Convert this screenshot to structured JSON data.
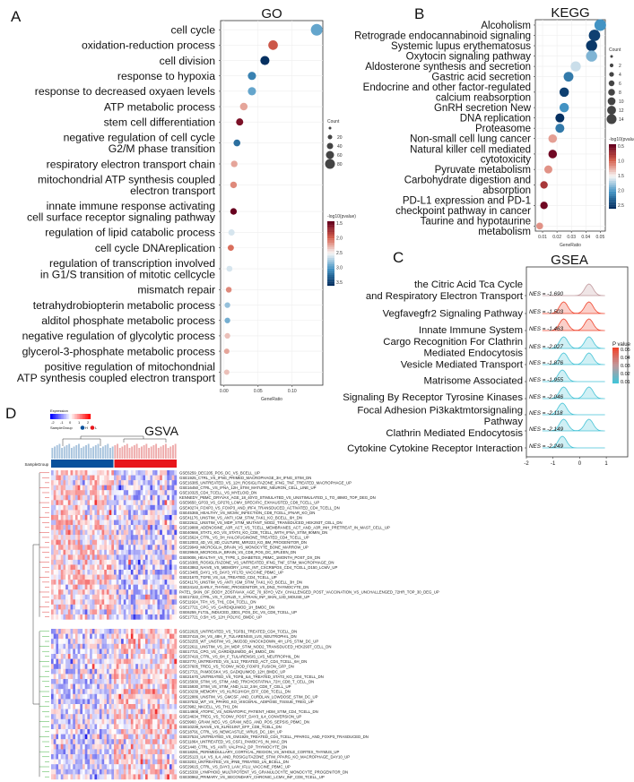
{
  "panels": {
    "a": "A",
    "b": "B",
    "c": "C",
    "d": "D"
  },
  "chart_data": [
    {
      "type": "scatter",
      "title": "GO",
      "xlabel": "GeneRatio",
      "xticks": [
        "0.00",
        "0.05",
        "0.10"
      ],
      "xlim": [
        -0.005,
        0.145
      ],
      "size_legend": {
        "title": "Count",
        "ticks": [
          "20",
          "40",
          "60",
          "80"
        ]
      },
      "color_legend": {
        "title": "-log10(pvalue)",
        "ticks": [
          "1.5",
          "2.0",
          "2.5",
          "3.0",
          "3.5"
        ],
        "range": [
          1.4,
          3.6
        ]
      },
      "terms": [
        {
          "label": [
            "cell cycle"
          ],
          "ratio": 0.136,
          "count": 85,
          "logp": 2.95
        },
        {
          "label": [
            "oxidation-reduction process"
          ],
          "ratio": 0.072,
          "count": 45,
          "logp": 1.9
        },
        {
          "label": [
            "cell division"
          ],
          "ratio": 0.06,
          "count": 38,
          "logp": 3.6
        },
        {
          "label": [
            "response to hypoxia"
          ],
          "ratio": 0.041,
          "count": 26,
          "logp": 3.15
        },
        {
          "label": [
            "response to decreased oxyaen levels"
          ],
          "ratio": 0.041,
          "count": 26,
          "logp": 2.95
        },
        {
          "label": [
            "ATP metabolic process"
          ],
          "ratio": 0.029,
          "count": 19,
          "logp": 2.2
        },
        {
          "label": [
            "stem cell differentiation"
          ],
          "ratio": 0.023,
          "count": 15,
          "logp": 1.5
        },
        {
          "label": [
            "negative regulation of cell cycle",
            "G2/M phase transition"
          ],
          "ratio": 0.019,
          "count": 12,
          "logp": 3.25
        },
        {
          "label": [
            "respiratory electron transport chain"
          ],
          "ratio": 0.015,
          "count": 10,
          "logp": 2.2
        },
        {
          "label": [
            "mitochondrial ATP synthesis coupled",
            "electron transport"
          ],
          "ratio": 0.014,
          "count": 10,
          "logp": 2.1
        },
        {
          "label": [
            "innate immune response activating",
            "cell surface receptor signaling pathway"
          ],
          "ratio": 0.014,
          "count": 10,
          "logp": 1.4
        },
        {
          "label": [
            "regulation of lipid catabolic process"
          ],
          "ratio": 0.011,
          "count": 8,
          "logp": 2.6
        },
        {
          "label": [
            "cell cycle DNAreplication"
          ],
          "ratio": 0.01,
          "count": 7,
          "logp": 2.0
        },
        {
          "label": [
            "regulation of transcription involved",
            "in G1/S transition of mitotic cellcycle"
          ],
          "ratio": 0.008,
          "count": 6,
          "logp": 2.6
        },
        {
          "label": [
            "mismatch repair"
          ],
          "ratio": 0.007,
          "count": 5,
          "logp": 2.1
        },
        {
          "label": [
            "tetrahydrobiopterin metabolic process"
          ],
          "ratio": 0.005,
          "count": 4,
          "logp": 2.8
        },
        {
          "label": [
            "alditol phosphate metabolic process"
          ],
          "ratio": 0.005,
          "count": 4,
          "logp": 2.9
        },
        {
          "label": [
            "negative regulation of glycolytic process"
          ],
          "ratio": 0.005,
          "count": 4,
          "logp": 2.3
        },
        {
          "label": [
            "glycerol-3-phosphate metabolic process"
          ],
          "ratio": 0.004,
          "count": 3,
          "logp": 2.2
        },
        {
          "label": [
            "positive regulation of mitochondnial",
            "ATP synthesis coupled electron transport"
          ],
          "ratio": 0.004,
          "count": 3,
          "logp": 2.3
        }
      ]
    },
    {
      "type": "scatter",
      "title": "KEGG",
      "xlabel": "GeneRatio",
      "xticks": [
        "0.01",
        "0.02",
        "0.03",
        "0.04",
        "0.05"
      ],
      "xlim": [
        0.005,
        0.0535
      ],
      "size_legend": {
        "title": "Count",
        "ticks": [
          "2",
          "4",
          "6",
          "8",
          "10",
          "12",
          "14"
        ]
      },
      "color_legend": {
        "title": "-log10(pvalue)",
        "ticks": [
          "0.5",
          "1.0",
          "1.5",
          "2.0",
          "2.5"
        ],
        "range": [
          0.4,
          2.8
        ]
      },
      "terms": [
        {
          "label": [
            "Alcoholism"
          ],
          "ratio": 0.05,
          "count": 14,
          "logp": 2.2
        },
        {
          "label": [
            "Retrograde endocannabinoid signaling"
          ],
          "ratio": 0.046,
          "count": 13,
          "logp": 2.7
        },
        {
          "label": [
            "Systemic lupus erythematosus"
          ],
          "ratio": 0.044,
          "count": 12,
          "logp": 2.75
        },
        {
          "label": [
            "Oxytocin signaling pathway"
          ],
          "ratio": 0.044,
          "count": 12,
          "logp": 2.0
        },
        {
          "label": [
            "Aldosterone synthesis and secretion"
          ],
          "ratio": 0.033,
          "count": 9,
          "logp": 1.75
        },
        {
          "label": [
            "Gastric acid secretion"
          ],
          "ratio": 0.028,
          "count": 8,
          "logp": 2.35
        },
        {
          "label": [
            "Endocrine and other factor-regulated",
            "calcium reabsorption"
          ],
          "ratio": 0.025,
          "count": 7,
          "logp": 2.7
        },
        {
          "label": [
            "GnRH secretion New"
          ],
          "ratio": 0.025,
          "count": 7,
          "logp": 2.2
        },
        {
          "label": [
            "DNA replication"
          ],
          "ratio": 0.022,
          "count": 6,
          "logp": 2.8
        },
        {
          "label": [
            "Proteasome"
          ],
          "ratio": 0.022,
          "count": 6,
          "logp": 2.35
        },
        {
          "label": [
            "Non-small cell lung cancer"
          ],
          "ratio": 0.017,
          "count": 5,
          "logp": 1.25
        },
        {
          "label": [
            "Natural killer cell mediated",
            "cytotoxicity"
          ],
          "ratio": 0.017,
          "count": 5,
          "logp": 0.45
        },
        {
          "label": [
            "Pyruvate metabolism"
          ],
          "ratio": 0.014,
          "count": 4,
          "logp": 1.2
        },
        {
          "label": [
            "Carbohydrate digestion and",
            "absorption"
          ],
          "ratio": 0.011,
          "count": 3,
          "logp": 0.75
        },
        {
          "label": [
            "PD-L1 expression and PD-1",
            "checkpoint pathway in cancer"
          ],
          "ratio": 0.011,
          "count": 3,
          "logp": 0.45
        },
        {
          "label": [
            "Taurine and hypotaurine",
            "metabolism"
          ],
          "ratio": 0.008,
          "count": 2,
          "logp": 1.2
        }
      ]
    },
    {
      "type": "area",
      "title": "GSEA",
      "xticks": [
        "-2",
        "-1",
        "0",
        "1"
      ],
      "xlim": [
        -2,
        1.4
      ],
      "legend": {
        "title": "P value",
        "ticks": [
          "0.05",
          "0.04",
          "0.03",
          "0.02",
          "0.01"
        ],
        "placement": "right"
      },
      "nes_prefix": "NES",
      "sets": [
        {
          "label": [
            "the Citric Acid Tca Cycle",
            "and Respiratory Electron Transport"
          ],
          "nes": "-1.690",
          "p": 0.03,
          "modes": [
            0.35
          ]
        },
        {
          "label": [
            "Vegfavegfr2 Signaling Pathway"
          ],
          "nes": "-1.503",
          "p": 0.05,
          "modes": [
            -0.6,
            0.35
          ]
        },
        {
          "label": [
            "Innate Immune System"
          ],
          "nes": "-1.463",
          "p": 0.05,
          "modes": [
            -0.6,
            0.35
          ]
        },
        {
          "label": [
            "Cargo Recognition For Clathrin",
            "Mediated Endocytosis"
          ],
          "nes": "-2.027",
          "p": 0.01,
          "modes": [
            -0.6,
            0.35
          ]
        },
        {
          "label": [
            "Vesicle Mediated Transport"
          ],
          "nes": "-1.876",
          "p": 0.01,
          "modes": [
            -0.6,
            0.35
          ]
        },
        {
          "label": [
            "Matrisome Associated"
          ],
          "nes": "-1.955",
          "p": 0.01,
          "modes": [
            -0.65
          ]
        },
        {
          "label": [
            "Signaling By Receptor Tyrosine Kinases"
          ],
          "nes": "-2.046",
          "p": 0.01,
          "modes": [
            -0.6,
            0.35
          ]
        },
        {
          "label": [
            "Focal Adhesion Pi3kaktmtorsignaling",
            "Pathway"
          ],
          "nes": "-2.118",
          "p": 0.01,
          "modes": [
            -0.65
          ]
        },
        {
          "label": [
            "Clathrin Mediated Endocytosis"
          ],
          "nes": "-2.149",
          "p": 0.01,
          "modes": [
            -0.6,
            0.35
          ]
        },
        {
          "label": [
            "Cytokine Cytokine Receptor Interaction"
          ],
          "nes": "-2.249",
          "p": 0.01,
          "modes": [
            -0.65
          ]
        }
      ]
    },
    {
      "type": "heatmap",
      "title": "GSVA",
      "legend": {
        "title": "Expression",
        "ticks": [
          "-2",
          "-1",
          "0",
          "1",
          "2"
        ],
        "group_title": "SampleGroup",
        "groups": [
          "H",
          "L"
        ],
        "group_colors": [
          "#08519c",
          "#e8161b"
        ]
      },
      "annotation_label": "SampleGroup",
      "samples_per_group": 26,
      "rows_up": [
        "GSE6259_DEC205_POS_DC_VS_BCELL_UP",
        "GSE1925_CTRL_VS_IFNG_PRIMED_MACROPHAGE_3H_IFNG_STIM_DN",
        "GSE16385_UNTREATED_VS_12H_ROSIGLITAZONE_IFNG_TNF_TREATED_MACROPHAGE_UP",
        "GSE16450_CTRL_VS_IFNA_12H_STIM_MATURE_NEURON_CELL_LINE_UP",
        "GSE10325_CD4_TCELL_VS_MYELOID_DN",
        "KENNEDY_PBMC_DRYVAX_AGE_18_40YO_STIMULATED_VS_UNSTIMULATED_1_TO_48MO_TOP_DEG_DN",
        "GSE9650_GP33_VS_GP276_LCMV_SPECIFIC_EXHAUSTED_CD8_TCELL_UP",
        "GSE40274_FOXP3_VS_FOXP3_AND_IRF4_TRANSDUCED_ACTIVATED_CD4_TCELL_DN",
        "GSE45365_HEALTHY_VS_MCMV_INFECTION_CD8_TCELL_IFNAR_KO_DN",
        "GSE41176_UNSTIM_VS_ANTI_IGM_STIM_TAK1_KO_BCELL_6H_DN",
        "GSE22611_UNSTIM_VS_MDP_STIM_MUTANT_NOD2_TRANSDUCED_HEK293T_CELL_DN",
        "GSE19888_ADENOSINE_A3R_ACT_VS_TCELL_MEMBRANES_ACT_AND_A3R_INH_PRETREAT_IN_MAST_CELL_UP",
        "GSE40666_STAT1_KO_VS_STAT4_KO_CD8_TCELL_WITH_IFNA_STIM_90MIN_DN",
        "GSE15624_CTRL_VS_3H_HALOFUGINONE_TREATED_CD4_TCELL_UP",
        "GSE12003_4D_VS_8D_CULTURE_MIR223_KO_BM_PROGENITOR_DN",
        "GSE29949_MICROGLIA_BRAIN_VS_MONOCYTE_BONE_MARROW_UP",
        "GSE29949_MICROGLIA_BRAIN_VS_CD8_POS_DC_SPLEEN_DN",
        "GSE9006_HEALTHY_VS_TYPE_1_DIABETES_PBMC_1MONTH_POST_DX_DN",
        "GSE16385_ROSIGLITAZONE_VS_UNTREATED_IFNG_TNF_STIM_MACROPHAGE_DN",
        "GSE43863_NAIVE_VS_MEMORY_LY6C_INT_CXCR5POS_CD4_TCELL_D150_LCMV_UP",
        "GSE13485_DAY1_VS_DAY3_YF17D_VACCINE_PBMC_UP",
        "GSE21670_TGFB_VS_IL6_TREATED_CD4_TCELL_UP",
        "GSE41176_UNSTIM_VS_ANTI_IGM_STIM_TAK1_KO_BCELL_3H_DN",
        "GSE24142_EARLY_THYMIC_PROGENITOR_VS_DN3_THYMOCYTE_DN",
        "PATEL_SKIN_OF_BODY_ZOSTAVAX_AGE_70_93YO_VZV_CHALLENGED_POST_VACCINATION_VS_UNCHALLENGED_72HR_TOP_30_DEG_UP",
        "GSE17322_CTRL_VS_T_CRUZI_Y_STRAIN_INF_SKIN_12D_MOUSE_UP",
        "GSE11924_TFH_VS_TH1_CD4_TCELL_DN",
        "GSE17721_CPG_VS_GARDIQUIMOD_1H_BMDC_DN",
        "GSE6259_FLT3L_INDUCED_33D1_POS_DC_VS_CD8_TCELL_UP",
        "GSE17721_0.5H_VS_12H_POLYIC_BMDC_UP"
      ],
      "rows_down": [
        "GSE22025_UNTREATED_VS_TGFB1_TREATED_CD4_TCELL_DN",
        "GSE37416_0H_VS_48H_F_TULARENSIS_LVS_NEUTROPHIL_DN",
        "GSE32255_WT_UNSTIM_VS_JMJD3D_KNOCKDOWN_4H_LPS_STIM_DC_UP",
        "GSE22611_UNSTIM_VS_2H_MDP_STIM_NOD2_TRANSDUCED_HEK293T_CELL_DN",
        "GSE17721_CPG_VS_GARDIQUIMOD_4H_BMDC_DN",
        "GSE37416_CTRL_VS_6H_F_TULARENSIS_LVS_NEUTROPHIL_DN",
        "GSE2770_UNTREATED_VS_IL12_TREATED_ACT_CD4_TCELL_6H_DN",
        "GSE37605_TREG_VS_TCONV_NOD_FOXP3_FUSION_GFP_DN",
        "GSE17721_PAM3CSK4_VS_GADIQUIMOD_12H_BMDC_UP",
        "GSE21670_UNTREATED_VS_TGFB_IL6_TREATED_STAT3_KO_CD4_TCELL_DN",
        "GSE15930_STIM_VS_STIM_AND_TRICHOSTATINA_72H_CD8_T_CELL_DN",
        "GSE15930_STIM_VS_STIM_AND_IL12_24H_CD8_T_CELL_UP",
        "GSE10239_MEMORY_VS_KLRG1HIGH_EFF_CD8_TCELL_DN",
        "GSE22886_UNSTIM_VS_GMCSF_AND_CURDLAN_LOWDOSE_STIM_DC_UP",
        "GSE37532_WT_VS_PPARG_KO_VISCERAL_ADIPOSE_TISSUE_TREG_UP",
        "GSE3982_NKCELL_VS_TH1_DN",
        "GSE14908_ATOPIC_VS_NONATOPIC_PATIENT_HDM_STIM_CD4_TCELL_DN",
        "GSE24634_TREG_VS_TCONV_POST_DAY3_IL4_CONVERSION_UP",
        "GSE9960_GRAM_NEG_VS_GRAM_NEG_AND_POS_SEPSIS_PBMC_DN",
        "GSE10239_NAIVE_VS_KLRG1INT_EFF_CD8_TCELL_DN",
        "GSE18791_CTRL_VS_NEWCASTLE_VIRUS_DC_16H_UP",
        "GSE37534_UNTREATED_VS_GW1929_TREATED_CD4_TCELL_PPARG1_AND_FOXP3_TRASDUCED_DN",
        "GSE11864_UNTREATED_VS_CSF1_PAM3CYS_IN_MAC_DN",
        "GSE1448_CTRL_VS_ANTI_VALPHA2_DP_THYMOCYTE_DN",
        "GSE18281_PERIMEDULLARY_CORTICAL_REGION_VS_WHOLE_CORTEX_THYMUS_UP",
        "GSE25123_IL4_VS_IL4_AND_ROSIGLITAZONE_STIM_PPARG_KO_MACROPHAGE_DAY10_UP",
        "GSE3203_UNTREATED_VS_IFNB_TREATED_LN_BCELL_DN",
        "GSE29615_CTRL_VS_DAY3_LAIV_IFLU_VACCINE_PBMC_UP",
        "GSE15330_LYMPHOID_MULTIPOTENT_VS_GRANULOCYTE_MONOCYTE_PROGENITOR_DN",
        "GSE30962_PRIMARY_VS_SECONDARY_CHRONIC_LCMV_INF_CD8_TCELL_UP"
      ]
    }
  ]
}
